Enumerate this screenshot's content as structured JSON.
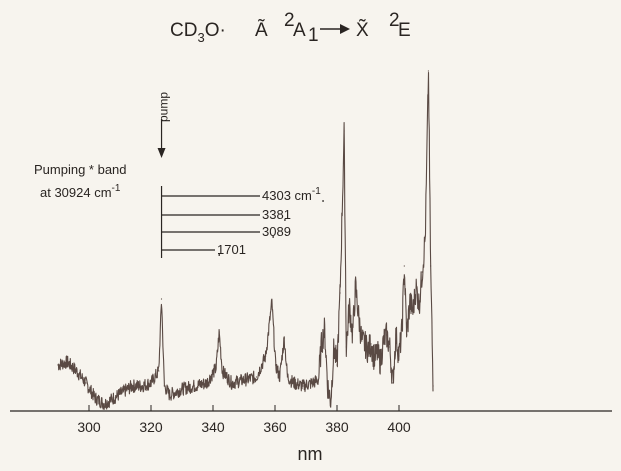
{
  "chart_data": {
    "type": "line",
    "title_parts": {
      "molecule": "CD",
      "molecule_sub": "3",
      "molecule_tail": "O·",
      "upper_state": "Ã",
      "upper_sup": "2",
      "upper_sym": "A",
      "upper_sym_sub": "1",
      "lower_state": "X̃",
      "lower_sup": "2",
      "lower_sym": "E"
    },
    "xlabel": "nm",
    "x_ticks": [
      300,
      320,
      340,
      360,
      380,
      400
    ],
    "xlim": [
      288,
      418
    ],
    "pump_label": "pump",
    "pump_wavelength": 323.4,
    "annotation": {
      "line1": "Pumping * band",
      "line2_prefix": "at 30924 cm",
      "line2_sup": "-1"
    },
    "intervals": [
      {
        "label": "4303 cm",
        "label_sup": "-1",
        "end_nm": 375.5
      },
      {
        "label": "3381",
        "label_sup": "",
        "end_nm": 363.2
      },
      {
        "label": "3089",
        "label_sup": "",
        "end_nm": 359.4
      },
      {
        "label": "1701",
        "label_sup": "",
        "end_nm": 342.0
      }
    ],
    "series": [
      {
        "x": [
          290,
          293,
          296,
          299,
          302,
          305,
          308,
          311,
          314,
          317,
          320,
          322.5,
          323.4,
          324.3,
          326,
          330,
          334,
          338,
          341,
          342,
          343,
          346,
          350,
          354,
          357,
          359,
          360.2,
          361.5,
          363,
          364,
          366,
          369,
          372,
          374,
          375,
          376,
          377,
          378,
          379,
          380,
          381,
          382.3,
          383,
          384,
          385,
          386,
          387,
          388,
          389,
          390,
          391,
          392,
          393,
          394,
          395,
          396,
          397,
          398,
          399,
          400,
          401,
          401.7,
          402.5,
          403.5,
          404.5,
          405.5,
          406.5,
          407.5,
          408.5,
          409.5,
          410.2,
          411
        ],
        "y": [
          0.02,
          0.03,
          0.0,
          -0.04,
          -0.09,
          -0.11,
          -0.09,
          -0.07,
          -0.05,
          -0.05,
          -0.04,
          0.0,
          0.24,
          -0.05,
          -0.08,
          -0.06,
          -0.05,
          -0.04,
          0.01,
          0.13,
          0.0,
          -0.04,
          -0.03,
          -0.02,
          0.05,
          0.23,
          0.02,
          -0.02,
          0.11,
          -0.02,
          -0.04,
          -0.05,
          -0.04,
          -0.03,
          0.09,
          0.14,
          -0.05,
          -0.1,
          0.08,
          0.02,
          0.26,
          0.8,
          0.08,
          0.22,
          0.12,
          0.28,
          0.18,
          0.1,
          0.09,
          0.07,
          0.09,
          0.04,
          0.06,
          0.03,
          0.1,
          0.12,
          0.08,
          -0.04,
          0.12,
          0.05,
          0.14,
          0.35,
          0.12,
          0.23,
          0.2,
          0.28,
          0.22,
          0.33,
          0.45,
          1.0,
          0.35,
          -0.05
        ]
      }
    ],
    "ylim": [
      -0.2,
      1.08
    ]
  }
}
